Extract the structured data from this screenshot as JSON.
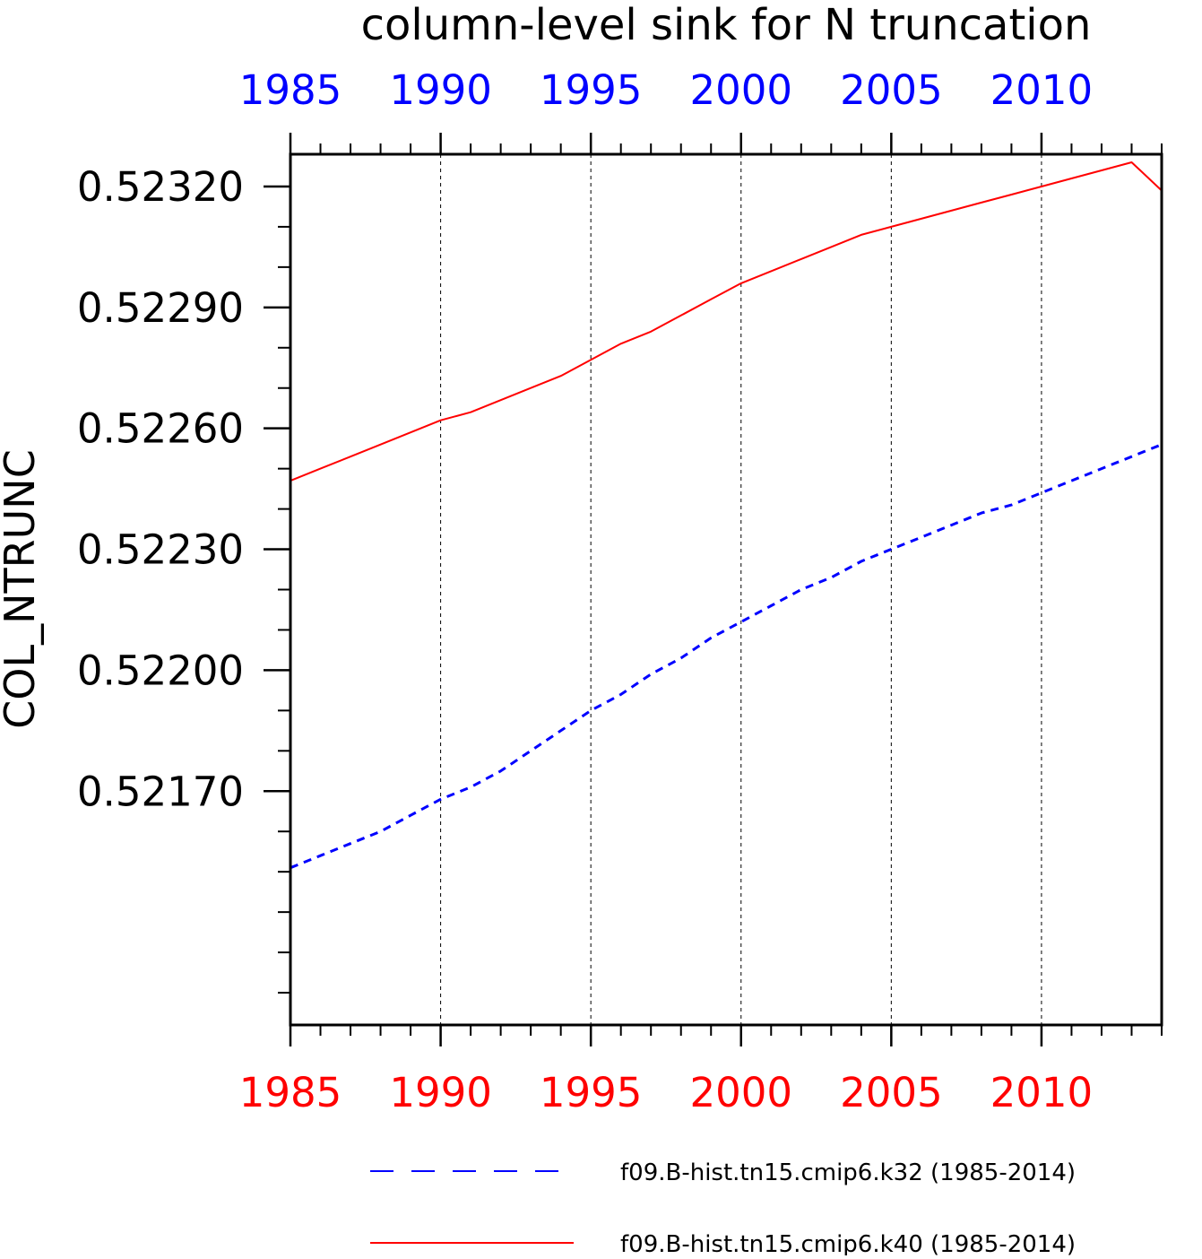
{
  "chart_data": {
    "type": "line",
    "title": "column-level sink for N truncation",
    "xlabel": "",
    "ylabel": "COL_NTRUNC",
    "xlim": [
      1985,
      2014
    ],
    "ylim": [
      0.52112,
      0.52328
    ],
    "x_ticks": [
      "1985",
      "1990",
      "1995",
      "2000",
      "2005",
      "2010"
    ],
    "y_ticks": [
      "0.52170",
      "0.52200",
      "0.52230",
      "0.52260",
      "0.52290",
      "0.52320"
    ],
    "top_axis_color": "#0000ff",
    "bottom_axis_color": "#ff0000",
    "grid": "vertical dashed at major x ticks",
    "legend_position": "bottom",
    "x": [
      1985,
      1986,
      1987,
      1988,
      1989,
      1990,
      1991,
      1992,
      1993,
      1994,
      1995,
      1996,
      1997,
      1998,
      1999,
      2000,
      2001,
      2002,
      2003,
      2004,
      2005,
      2006,
      2007,
      2008,
      2009,
      2010,
      2011,
      2012,
      2013,
      2014
    ],
    "series": [
      {
        "name": "f09.B-hist.tn15.cmip6.k32 (1985-2014)",
        "color": "#0000ff",
        "dash": "dashed",
        "values": [
          0.52151,
          0.52154,
          0.52157,
          0.5216,
          0.52164,
          0.52168,
          0.52171,
          0.52175,
          0.5218,
          0.52185,
          0.5219,
          0.52194,
          0.52199,
          0.52203,
          0.52208,
          0.52212,
          0.52216,
          0.5222,
          0.52223,
          0.52227,
          0.5223,
          0.52233,
          0.52236,
          0.52239,
          0.52241,
          0.52244,
          0.52247,
          0.5225,
          0.52253,
          0.52256
        ]
      },
      {
        "name": "f09.B-hist.tn15.cmip6.k40 (1985-2014)",
        "color": "#ff0000",
        "dash": "solid",
        "values": [
          0.52247,
          0.5225,
          0.52253,
          0.52256,
          0.52259,
          0.52262,
          0.52264,
          0.52267,
          0.5227,
          0.52273,
          0.52277,
          0.52281,
          0.52284,
          0.52288,
          0.52292,
          0.52296,
          0.52299,
          0.52302,
          0.52305,
          0.52308,
          0.5231,
          0.52312,
          0.52314,
          0.52316,
          0.52318,
          0.5232,
          0.52322,
          0.52324,
          0.52326,
          0.52319
        ]
      }
    ]
  }
}
